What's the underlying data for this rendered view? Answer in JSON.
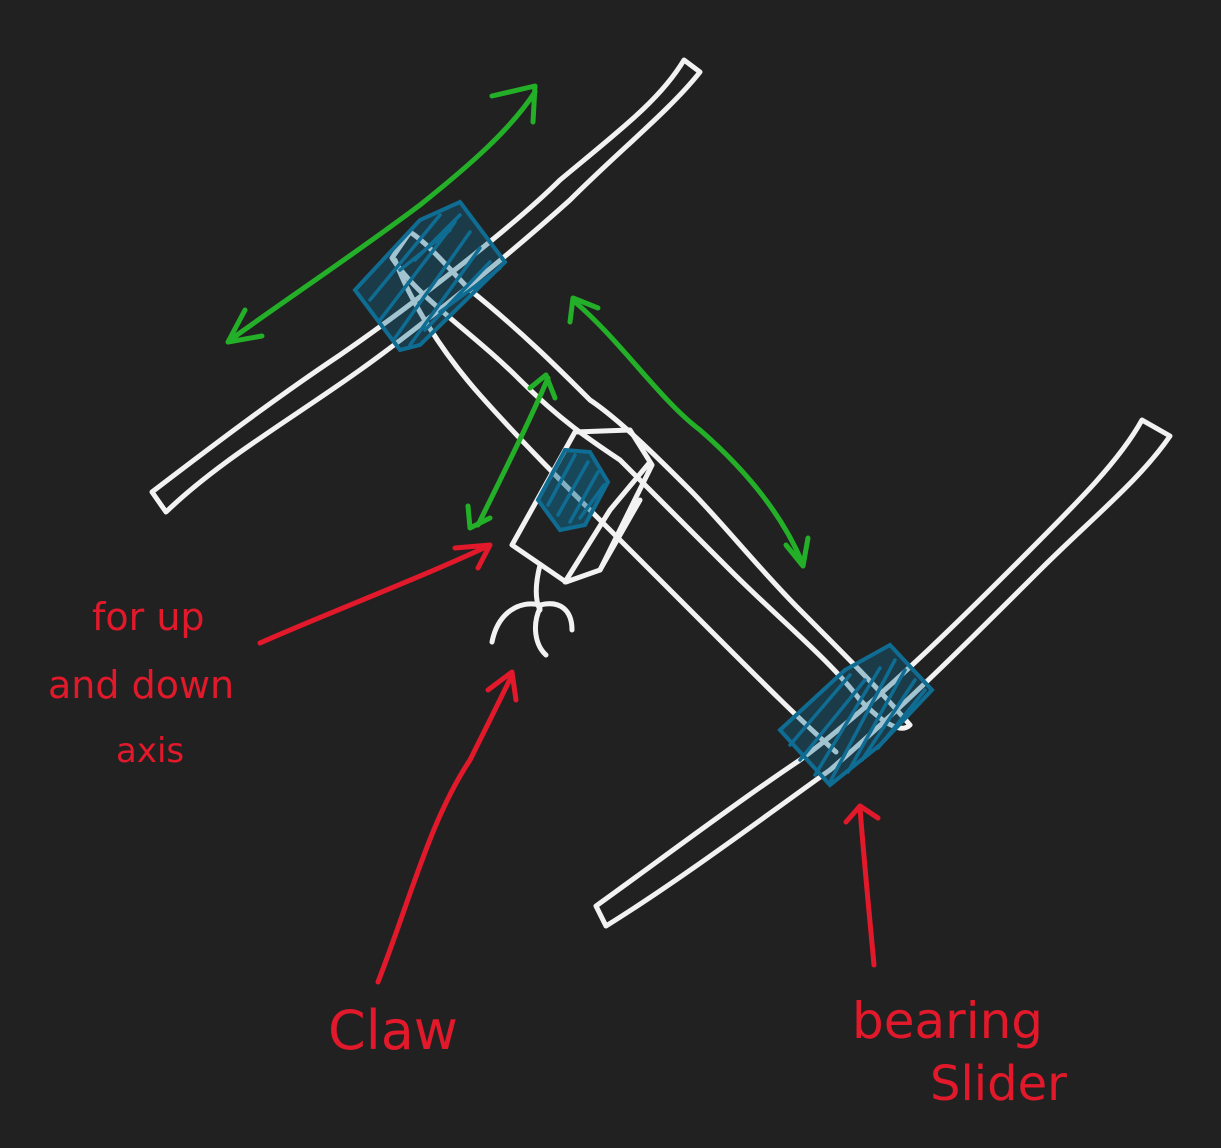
{
  "colors": {
    "background": "#222121",
    "structure": "#f2f2f2",
    "bearing": "#0f6d93",
    "motion_arrow": "#23b028",
    "annotation": "#e2192b"
  },
  "labels": {
    "up_down_line1": "for up",
    "up_down_line2": "and down",
    "up_down_line3": "axis",
    "claw": "Claw",
    "bearing_line1": "bearing",
    "bearing_line2": "Slider"
  }
}
